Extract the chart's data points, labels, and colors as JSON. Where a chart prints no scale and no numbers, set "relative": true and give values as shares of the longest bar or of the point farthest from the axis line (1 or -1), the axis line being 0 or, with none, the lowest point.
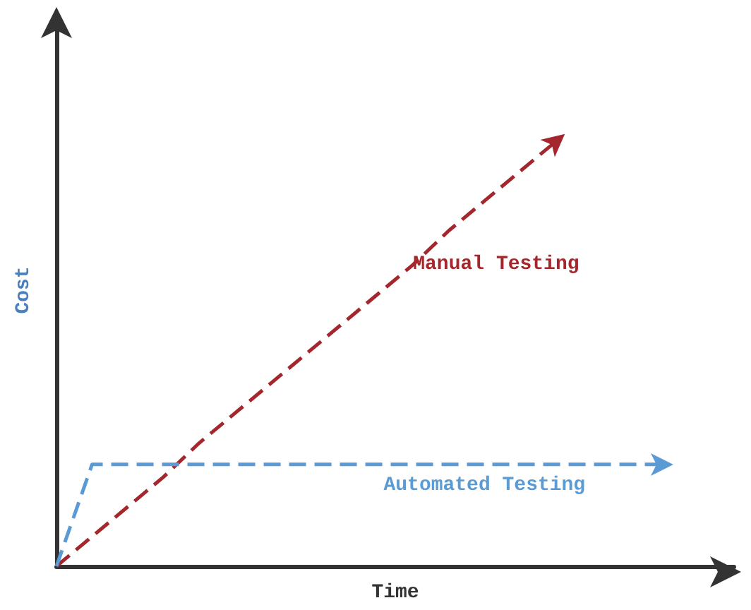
{
  "chart_data": {
    "type": "line",
    "relative": true,
    "xlabel": "Time",
    "ylabel": "Cost",
    "line_style": "dashed",
    "marker": "none",
    "grid": false,
    "legend": false,
    "categories": [
      null,
      null,
      null,
      null,
      null,
      null,
      null,
      null,
      null,
      null,
      null,
      null,
      null,
      null,
      null,
      null,
      null,
      null
    ],
    "series": [
      {
        "name": "Manual Testing",
        "color": "#a3272c",
        "values": [
          0,
          0.07,
          0.14,
          0.21,
          0.29,
          0.36,
          0.43,
          0.5,
          0.57,
          0.64,
          0.71,
          0.79,
          0.86,
          0.93,
          1,
          null,
          null,
          null
        ]
      },
      {
        "name": "Automated Testing",
        "color": "#5b9bd5",
        "values": [
          0,
          0.24,
          0.24,
          0.24,
          0.24,
          0.24,
          0.24,
          0.24,
          0.24,
          0.24,
          0.24,
          0.24,
          0.24,
          0.24,
          0.24,
          0.24,
          0.24,
          0.24
        ]
      }
    ]
  }
}
